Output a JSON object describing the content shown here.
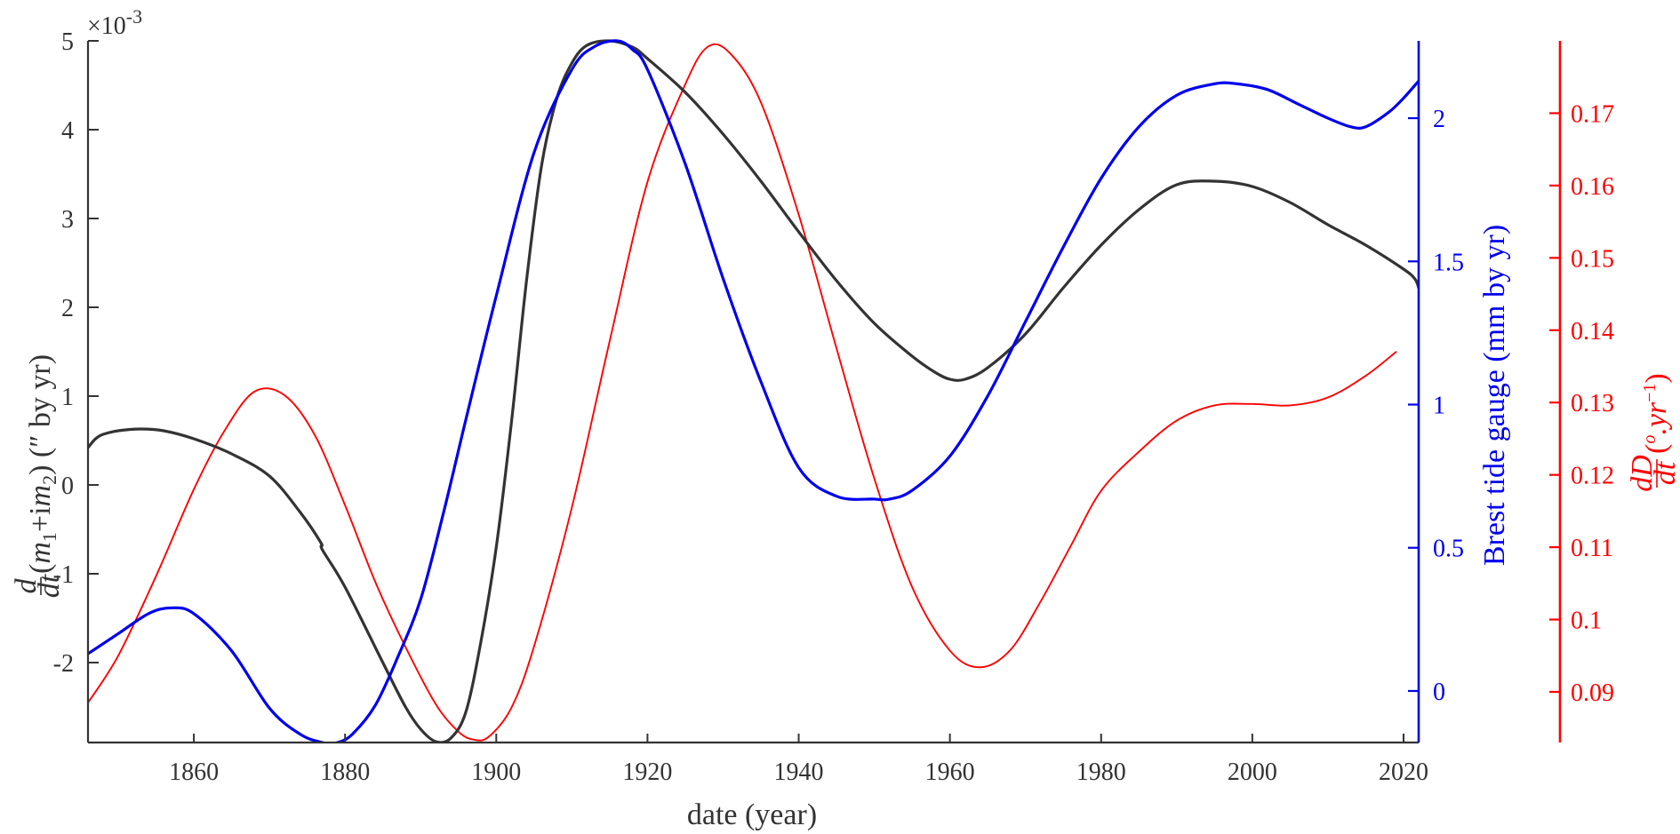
{
  "chart_data": {
    "type": "line",
    "title": "",
    "xlabel": "date (year)",
    "xlim": [
      1846,
      2022
    ],
    "xticks": [
      1860,
      1880,
      1900,
      1920,
      1940,
      1960,
      1980,
      2000,
      2020
    ],
    "xtick_labels": [
      "1860",
      "1880",
      "1900",
      "1920",
      "1940",
      "1960",
      "1980",
      "2000",
      "2020"
    ],
    "axes": {
      "left": {
        "color": "#333333",
        "ylim": [
          -2.9,
          5.0
        ],
        "ticks": [
          -2,
          -1,
          0,
          1,
          2,
          3,
          4,
          5
        ],
        "tick_labels": [
          "-2",
          "-1",
          "0",
          "1",
          "2",
          "3",
          "4",
          "5"
        ],
        "multiplier_base": "×10",
        "multiplier_exp": "-3",
        "label": {
          "frac_num": "d",
          "frac_den": "dt",
          "open": "(",
          "m": "m",
          "sub1": "1",
          "plus": "+i",
          "sub2": "2",
          "close": ")",
          "unit": " (″ by yr)"
        }
      },
      "right1": {
        "color": "#0000ee",
        "ylim": [
          -0.18,
          2.27
        ],
        "ticks": [
          0,
          0.5,
          1,
          1.5,
          2
        ],
        "tick_labels": [
          "0",
          "0.5",
          "1",
          "1.5",
          "2"
        ],
        "label": "Brest tide gauge (mm by yr)"
      },
      "right2": {
        "color": "#ff0000",
        "ylim": [
          0.083,
          0.18
        ],
        "ticks": [
          0.09,
          0.1,
          0.11,
          0.12,
          0.13,
          0.14,
          0.15,
          0.16,
          0.17
        ],
        "tick_labels": [
          "0.09",
          "0.1",
          "0.11",
          "0.12",
          "0.13",
          "0.14",
          "0.15",
          "0.16",
          "0.17"
        ],
        "label": {
          "frac_num": "dD",
          "frac_den": "dt",
          "open": " (",
          "deg": "o",
          "unit": ".yr",
          "exp": "−1",
          "close": ")"
        }
      }
    },
    "series": [
      {
        "name": "d/dt(m1+im2)",
        "axis": "left",
        "color": "#333333",
        "x": [
          1846,
          1847,
          1848,
          1850,
          1853,
          1856,
          1860,
          1865,
          1870,
          1874,
          1876.8,
          1877,
          1880,
          1885,
          1888,
          1890,
          1892,
          1894,
          1896,
          1898,
          1900,
          1902,
          1904,
          1906,
          1908,
          1910,
          1912,
          1915,
          1918,
          1920,
          1925,
          1930,
          1935,
          1940,
          1945,
          1950,
          1955,
          1958,
          1960,
          1962,
          1965,
          1970,
          1975,
          1980,
          1985,
          1990,
          1995,
          2000,
          2005,
          2010,
          2015,
          2020,
          2021.5,
          2022
        ],
        "y": [
          0.42,
          0.52,
          0.57,
          0.61,
          0.63,
          0.61,
          0.52,
          0.35,
          0.1,
          -0.3,
          -0.65,
          -0.73,
          -1.15,
          -2.0,
          -2.5,
          -2.75,
          -2.89,
          -2.85,
          -2.55,
          -1.75,
          -0.7,
          0.7,
          2.3,
          3.6,
          4.35,
          4.75,
          4.95,
          5.0,
          4.93,
          4.8,
          4.42,
          3.95,
          3.42,
          2.85,
          2.3,
          1.82,
          1.45,
          1.27,
          1.19,
          1.19,
          1.32,
          1.7,
          2.22,
          2.7,
          3.1,
          3.38,
          3.42,
          3.36,
          3.18,
          2.93,
          2.7,
          2.43,
          2.32,
          2.22
        ]
      },
      {
        "name": "Brest tide gauge",
        "axis": "right1",
        "color": "#0000ee",
        "x": [
          1846,
          1850,
          1854,
          1857,
          1860,
          1865,
          1870,
          1874,
          1877,
          1879,
          1881,
          1884,
          1887,
          1890,
          1893,
          1896,
          1900,
          1905,
          1910,
          1913,
          1916,
          1918,
          1920,
          1925,
          1930,
          1935,
          1940,
          1945,
          1950,
          1952,
          1955,
          1960,
          1965,
          1970,
          1975,
          1980,
          1985,
          1990,
          1995,
          1998,
          2002,
          2006,
          2010,
          2013,
          2015,
          2018,
          2020,
          2022
        ],
        "y": [
          0.13,
          0.2,
          0.27,
          0.29,
          0.27,
          0.14,
          -0.06,
          -0.15,
          -0.18,
          -0.18,
          -0.15,
          -0.05,
          0.12,
          0.32,
          0.62,
          0.95,
          1.38,
          1.88,
          2.17,
          2.25,
          2.27,
          2.24,
          2.17,
          1.84,
          1.44,
          1.08,
          0.78,
          0.68,
          0.67,
          0.67,
          0.7,
          0.82,
          1.03,
          1.29,
          1.55,
          1.79,
          1.97,
          2.08,
          2.12,
          2.12,
          2.1,
          2.05,
          2.0,
          1.97,
          1.97,
          2.02,
          2.07,
          2.13
        ]
      },
      {
        "name": "dD/dt",
        "axis": "right2",
        "color": "#ff0000",
        "x": [
          1846,
          1850,
          1855,
          1860,
          1864,
          1868,
          1872,
          1876,
          1880,
          1884,
          1888,
          1892,
          1895,
          1897,
          1899,
          1902,
          1905,
          1910,
          1915,
          1920,
          1925,
          1928,
          1931,
          1935,
          1940,
          1945,
          1950,
          1955,
          1960,
          1964,
          1968,
          1972,
          1976,
          1980,
          1985,
          1990,
          1995,
          2000,
          2005,
          2010,
          2015,
          2019
        ],
        "y": [
          0.0885,
          0.095,
          0.106,
          0.118,
          0.126,
          0.1315,
          0.131,
          0.1255,
          0.1158,
          0.1052,
          0.0962,
          0.0883,
          0.0845,
          0.0834,
          0.0838,
          0.0878,
          0.0963,
          0.1155,
          0.1385,
          0.1605,
          0.174,
          0.1792,
          0.1782,
          0.1715,
          0.156,
          0.1375,
          0.1195,
          0.1045,
          0.0957,
          0.0934,
          0.0958,
          0.1025,
          0.1102,
          0.1178,
          0.1232,
          0.1275,
          0.1296,
          0.1298,
          0.1296,
          0.1307,
          0.1337,
          0.137
        ]
      }
    ]
  }
}
